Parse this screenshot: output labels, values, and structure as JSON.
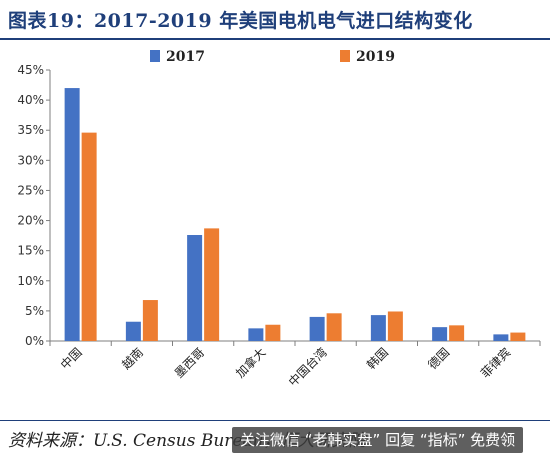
{
  "page": {
    "title": "图表19：2017-2019 年美国电机电气进口结构变化",
    "source": "资料来源：U.S. Census Bureau，恒大研究院",
    "watermark": "关注微信 “老韩实盘” 回复 “指标” 免费领"
  },
  "chart_data": {
    "type": "bar",
    "categories": [
      "中国",
      "越南",
      "墨西哥",
      "加拿大",
      "中国台湾",
      "韩国",
      "德国",
      "菲律宾"
    ],
    "series": [
      {
        "name": "2017",
        "values": [
          42.0,
          3.2,
          17.6,
          2.1,
          4.0,
          4.3,
          2.3,
          1.1
        ],
        "color": "#4472c4"
      },
      {
        "name": "2019",
        "values": [
          34.6,
          6.8,
          18.7,
          2.7,
          4.6,
          4.9,
          2.6,
          1.4
        ],
        "color": "#ed7d31"
      }
    ],
    "yticks": [
      "0%",
      "5%",
      "10%",
      "15%",
      "20%",
      "25%",
      "30%",
      "35%",
      "40%",
      "45%"
    ],
    "ylim": [
      0,
      45
    ],
    "legend_position": "top-center",
    "grid": false
  }
}
